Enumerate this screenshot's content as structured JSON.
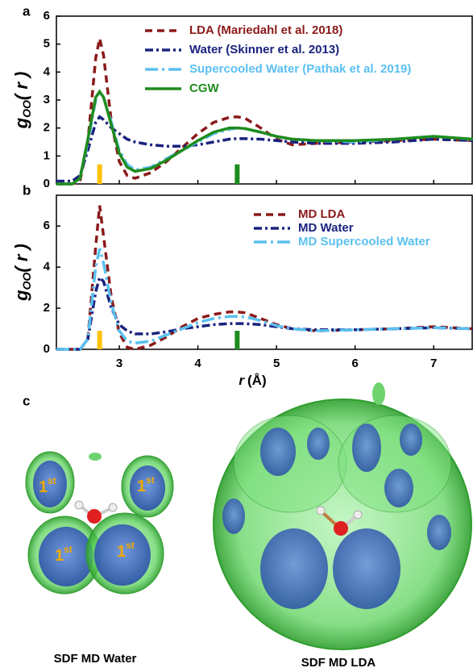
{
  "chart_data": [
    {
      "type": "line",
      "panel_label": "a",
      "y_label": {
        "main": "g",
        "sub": "OO",
        "arg": "( r )"
      },
      "x": [
        2.2,
        2.4,
        2.5,
        2.6,
        2.7,
        2.75,
        2.8,
        2.9,
        3.0,
        3.1,
        3.2,
        3.4,
        3.6,
        3.8,
        4.0,
        4.2,
        4.4,
        4.5,
        4.6,
        4.8,
        5.0,
        5.2,
        5.5,
        6.0,
        6.5,
        7.0,
        7.5
      ],
      "xlim": [
        2.2,
        7.5
      ],
      "ylim": [
        0,
        6
      ],
      "yticks": [
        0,
        1,
        2,
        3,
        4,
        5,
        6
      ],
      "series": [
        {
          "name": "LDA (Mariedahl et al. 2018)",
          "color": "#8b1a1a",
          "style": "dash",
          "values": [
            0,
            0,
            0.1,
            1.5,
            4.5,
            5.2,
            4.6,
            2.2,
            0.8,
            0.3,
            0.2,
            0.4,
            0.8,
            1.3,
            1.8,
            2.2,
            2.38,
            2.4,
            2.35,
            2.0,
            1.6,
            1.4,
            1.45,
            1.5,
            1.55,
            1.6,
            1.55
          ]
        },
        {
          "name": "Water (Skinner et al. 2013)",
          "color": "#1a237e",
          "style": "dashdot",
          "values": [
            0.1,
            0.1,
            0.3,
            1.2,
            2.2,
            2.4,
            2.3,
            2.0,
            1.8,
            1.6,
            1.5,
            1.4,
            1.35,
            1.35,
            1.4,
            1.5,
            1.6,
            1.62,
            1.62,
            1.6,
            1.55,
            1.5,
            1.45,
            1.45,
            1.5,
            1.6,
            1.55
          ]
        },
        {
          "name": "Supercooled Water (Pathak et al. 2019)",
          "color": "#5bc0f0",
          "style": "longdashdot",
          "values": [
            0,
            0,
            0.2,
            1.5,
            3.0,
            3.3,
            3.1,
            2.2,
            1.2,
            0.7,
            0.5,
            0.6,
            0.9,
            1.2,
            1.5,
            1.8,
            1.95,
            2.0,
            1.98,
            1.85,
            1.7,
            1.6,
            1.55,
            1.5,
            1.6,
            1.7,
            1.6
          ]
        },
        {
          "name": "CGW",
          "color": "#1e8c1e",
          "style": "solid",
          "values": [
            0,
            0,
            0.2,
            1.6,
            3.1,
            3.3,
            3.1,
            2.1,
            1.1,
            0.6,
            0.45,
            0.55,
            0.85,
            1.2,
            1.55,
            1.85,
            2.0,
            2.0,
            1.98,
            1.85,
            1.7,
            1.6,
            1.55,
            1.55,
            1.6,
            1.7,
            1.6
          ]
        }
      ],
      "markers": [
        {
          "x": 2.75,
          "y": 0.7,
          "color": "#ffc107"
        },
        {
          "x": 4.5,
          "y": 0.7,
          "color": "#1e8c1e"
        }
      ]
    },
    {
      "type": "line",
      "panel_label": "b",
      "y_label": {
        "main": "g",
        "sub": "OO",
        "arg": "( r )"
      },
      "x_label": {
        "main": "r",
        "unit": "(Å)"
      },
      "x": [
        2.2,
        2.4,
        2.5,
        2.6,
        2.7,
        2.75,
        2.8,
        2.9,
        3.0,
        3.1,
        3.2,
        3.4,
        3.6,
        3.8,
        4.0,
        4.2,
        4.4,
        4.5,
        4.6,
        4.8,
        5.0,
        5.2,
        5.5,
        6.0,
        6.5,
        7.0,
        7.5
      ],
      "xlim": [
        2.2,
        7.5
      ],
      "xticks": [
        3,
        4,
        5,
        6,
        7
      ],
      "ylim": [
        0,
        7.5
      ],
      "yticks": [
        0,
        2,
        4,
        6
      ],
      "series": [
        {
          "name": "MD LDA",
          "color": "#8b1a1a",
          "style": "dash",
          "values": [
            0,
            0,
            0,
            0.5,
            5,
            7,
            5.5,
            2.5,
            0.8,
            0.1,
            0,
            0.2,
            0.6,
            1.1,
            1.5,
            1.7,
            1.82,
            1.82,
            1.78,
            1.5,
            1.2,
            1.0,
            0.9,
            0.95,
            1.0,
            1.1,
            1.0
          ]
        },
        {
          "name": "MD Water",
          "color": "#1a237e",
          "style": "dashdot",
          "values": [
            0,
            0,
            0,
            0.5,
            2.8,
            3.5,
            3.3,
            2.0,
            1.2,
            0.9,
            0.75,
            0.75,
            0.85,
            1.0,
            1.1,
            1.2,
            1.25,
            1.25,
            1.25,
            1.2,
            1.1,
            1.0,
            0.95,
            0.95,
            1.0,
            1.05,
            1.0
          ]
        },
        {
          "name": "MD Supercooled Water",
          "color": "#5bc0f0",
          "style": "longdashdot",
          "values": [
            0,
            0,
            0,
            0.5,
            4,
            4.9,
            4.2,
            2.2,
            0.9,
            0.4,
            0.3,
            0.4,
            0.7,
            1.0,
            1.3,
            1.5,
            1.6,
            1.6,
            1.58,
            1.4,
            1.15,
            1.0,
            0.9,
            0.95,
            1.0,
            1.05,
            1.0
          ]
        }
      ],
      "markers": [
        {
          "x": 2.75,
          "y": 0.9,
          "color": "#ffc107"
        },
        {
          "x": 4.5,
          "y": 0.9,
          "color": "#1e8c1e"
        }
      ]
    }
  ],
  "panel_c": {
    "label": "c",
    "lobe_labels": [
      [
        "1",
        "st"
      ],
      [
        "1",
        "st"
      ],
      [
        "1",
        "st"
      ],
      [
        "1",
        "st"
      ]
    ],
    "captions": [
      "SDF MD Water",
      "SDF MD LDA"
    ]
  }
}
